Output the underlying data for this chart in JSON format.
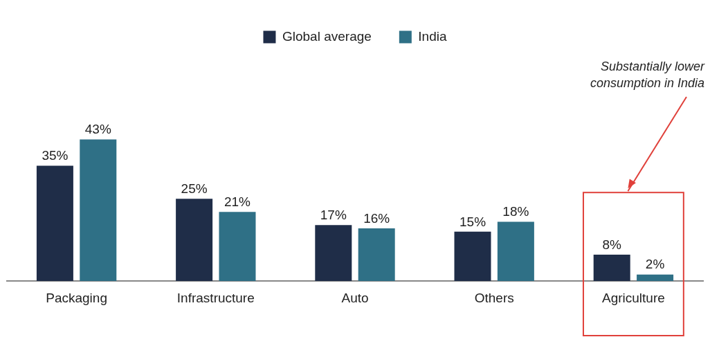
{
  "chart_data": {
    "type": "bar",
    "categories": [
      "Packaging",
      "Infrastructure",
      "Auto",
      "Others",
      "Agriculture"
    ],
    "series": [
      {
        "name": "Global average",
        "color": "#1f2d48",
        "values": [
          35,
          25,
          17,
          15,
          8
        ],
        "value_labels": [
          "35%",
          "25%",
          "17%",
          "15%",
          "8%"
        ]
      },
      {
        "name": "India",
        "color": "#2f7086",
        "values": [
          43,
          21,
          16,
          18,
          2
        ],
        "value_labels": [
          "43%",
          "21%",
          "16%",
          "18%",
          "2%"
        ]
      }
    ],
    "legend": "top",
    "grid": false,
    "annotations": [
      "Substantially lower consumption in India"
    ]
  }
}
